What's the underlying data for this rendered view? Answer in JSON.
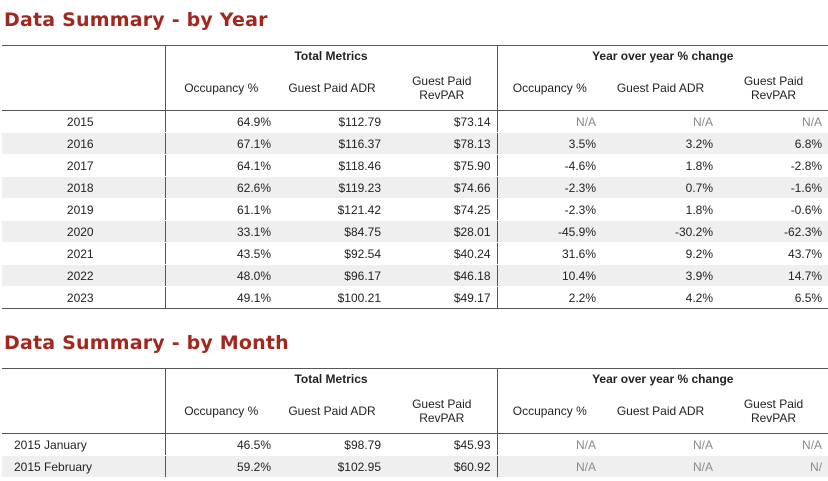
{
  "year_section": {
    "title": "Data Summary - by Year",
    "group_headers": {
      "total": "Total Metrics",
      "yoy": "Year over year % change"
    },
    "columns": [
      "Occupancy %",
      "Guest Paid ADR",
      "Guest Paid RevPAR",
      "Occupancy %",
      "Guest Paid ADR",
      "Guest Paid RevPAR"
    ],
    "rows": [
      {
        "label": "2015",
        "occ": "64.9%",
        "adr": "$112.79",
        "revpar": "$73.14",
        "occ_chg": "N/A",
        "adr_chg": "N/A",
        "revpar_chg": "N/A"
      },
      {
        "label": "2016",
        "occ": "67.1%",
        "adr": "$116.37",
        "revpar": "$78.13",
        "occ_chg": "3.5%",
        "adr_chg": "3.2%",
        "revpar_chg": "6.8%"
      },
      {
        "label": "2017",
        "occ": "64.1%",
        "adr": "$118.46",
        "revpar": "$75.90",
        "occ_chg": "-4.6%",
        "adr_chg": "1.8%",
        "revpar_chg": "-2.8%"
      },
      {
        "label": "2018",
        "occ": "62.6%",
        "adr": "$119.23",
        "revpar": "$74.66",
        "occ_chg": "-2.3%",
        "adr_chg": "0.7%",
        "revpar_chg": "-1.6%"
      },
      {
        "label": "2019",
        "occ": "61.1%",
        "adr": "$121.42",
        "revpar": "$74.25",
        "occ_chg": "-2.3%",
        "adr_chg": "1.8%",
        "revpar_chg": "-0.6%"
      },
      {
        "label": "2020",
        "occ": "33.1%",
        "adr": "$84.75",
        "revpar": "$28.01",
        "occ_chg": "-45.9%",
        "adr_chg": "-30.2%",
        "revpar_chg": "-62.3%"
      },
      {
        "label": "2021",
        "occ": "43.5%",
        "adr": "$92.54",
        "revpar": "$40.24",
        "occ_chg": "31.6%",
        "adr_chg": "9.2%",
        "revpar_chg": "43.7%"
      },
      {
        "label": "2022",
        "occ": "48.0%",
        "adr": "$96.17",
        "revpar": "$46.18",
        "occ_chg": "10.4%",
        "adr_chg": "3.9%",
        "revpar_chg": "14.7%"
      },
      {
        "label": "2023",
        "occ": "49.1%",
        "adr": "$100.21",
        "revpar": "$49.17",
        "occ_chg": "2.2%",
        "adr_chg": "4.2%",
        "revpar_chg": "6.5%"
      }
    ]
  },
  "month_section": {
    "title": "Data Summary - by Month",
    "group_headers": {
      "total": "Total Metrics",
      "yoy": "Year over year % change"
    },
    "columns": [
      "Occupancy %",
      "Guest Paid ADR",
      "Guest Paid RevPAR",
      "Occupancy %",
      "Guest Paid ADR",
      "Guest Paid RevPAR"
    ],
    "rows": [
      {
        "label": "2015 January",
        "occ": "46.5%",
        "adr": "$98.79",
        "revpar": "$45.93",
        "occ_chg": "N/A",
        "adr_chg": "N/A",
        "revpar_chg": "N/A"
      },
      {
        "label": "2015 February",
        "occ": "59.2%",
        "adr": "$102.95",
        "revpar": "$60.92",
        "occ_chg": "N/A",
        "adr_chg": "N/A",
        "revpar_chg": "N/"
      }
    ]
  }
}
